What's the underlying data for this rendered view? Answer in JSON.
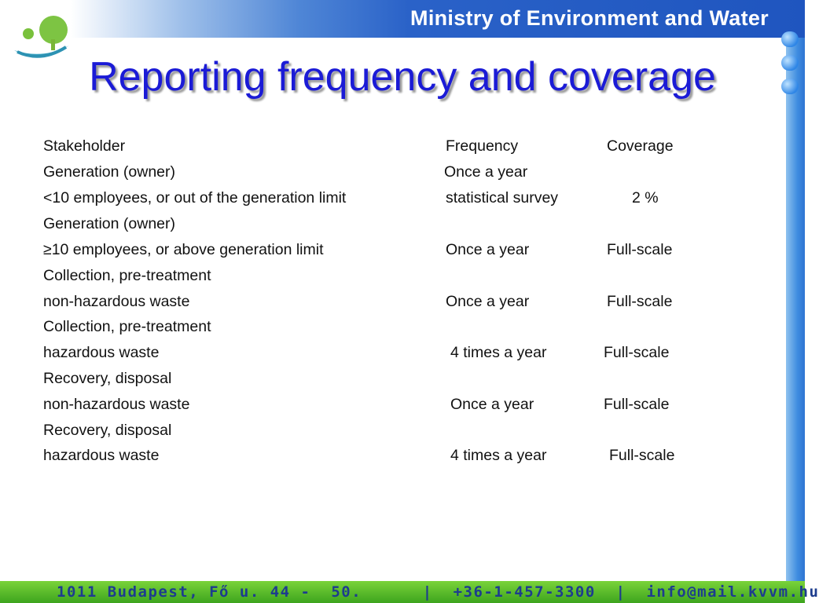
{
  "header": {
    "ministry": "Ministry of Environment and Water"
  },
  "slide": {
    "title": "Reporting frequency and coverage"
  },
  "table": {
    "header": {
      "stakeholder": "Stakeholder",
      "frequency": "Frequency",
      "coverage": "Coverage"
    },
    "rows": [
      {
        "stakeholder": "Generation (owner)",
        "frequency": "Once a year",
        "coverage": ""
      },
      {
        "stakeholder": "<10 employees, or out of the generation limit",
        "frequency": "statistical survey",
        "coverage": "2 %"
      },
      {
        "stakeholder": "Generation (owner)",
        "frequency": "",
        "coverage": ""
      },
      {
        "stakeholder": "≥10 employees, or above generation limit",
        "frequency": "Once a year",
        "coverage": "Full-scale"
      },
      {
        "stakeholder": "Collection, pre-treatment",
        "frequency": "",
        "coverage": ""
      },
      {
        "stakeholder": "non-hazardous waste",
        "frequency": "Once a year",
        "coverage": "Full-scale"
      },
      {
        "stakeholder": "Collection, pre-treatment",
        "frequency": "",
        "coverage": ""
      },
      {
        "stakeholder": "hazardous waste",
        "frequency": "4 times a year",
        "coverage": "Full-scale"
      },
      {
        "stakeholder": "Recovery, disposal",
        "frequency": "",
        "coverage": ""
      },
      {
        "stakeholder": "non-hazardous waste",
        "frequency": "Once a year",
        "coverage": "Full-scale"
      },
      {
        "stakeholder": "Recovery, disposal",
        "frequency": "",
        "coverage": ""
      },
      {
        "stakeholder": "hazardous waste",
        "frequency": "4 times a year",
        "coverage": "Full-scale"
      }
    ]
  },
  "footer": {
    "text": "1011 Budapest, Fő u. 44 -  50.      |  +36-1-457-3300  |  info@mail.kvvm.hu"
  },
  "colors": {
    "title": "#1b1bd6",
    "banner_blue": "#1f55bf",
    "footer_green": "#4cb424",
    "footer_text": "#1d3c8e"
  },
  "icons": {
    "logo": "tree-logo-icon"
  }
}
